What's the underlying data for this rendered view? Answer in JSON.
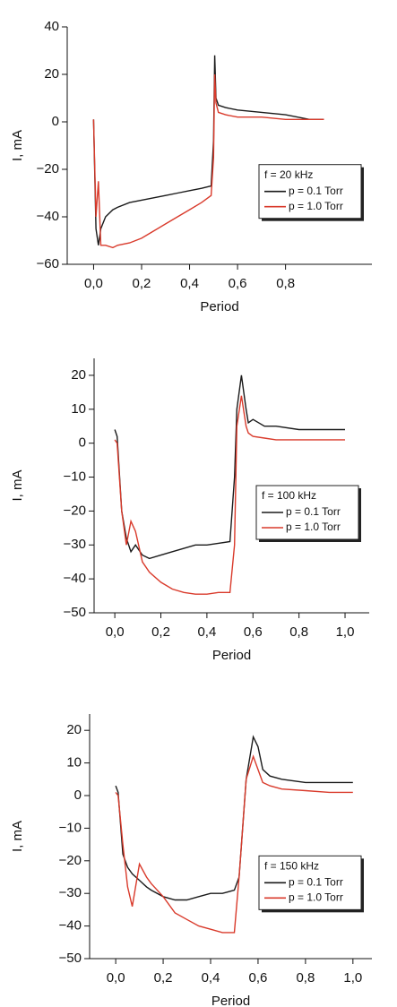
{
  "chart_data": [
    {
      "type": "line",
      "xlabel": "Period",
      "ylabel": "I, mA",
      "legend_title": "f = 20 kHz",
      "legend": "lower right",
      "x": [
        0,
        0.01,
        0.02,
        0.03,
        0.05,
        0.08,
        0.1,
        0.15,
        0.2,
        0.25,
        0.3,
        0.35,
        0.4,
        0.45,
        0.49,
        0.5,
        0.505,
        0.51,
        0.52,
        0.55,
        0.6,
        0.7,
        0.8,
        0.9,
        0.96
      ],
      "series": [
        {
          "name": "p = 0.1 Torr",
          "color": "#1a1a1a",
          "values": [
            1,
            -45,
            -52,
            -45,
            -40,
            -37,
            -36,
            -34,
            -33,
            -32,
            -31,
            -30,
            -29,
            -28,
            -27,
            -8,
            28,
            10,
            7,
            6,
            5,
            4,
            3,
            1,
            1
          ]
        },
        {
          "name": "p = 1.0 Torr",
          "color": "#d93a2b",
          "values": [
            1,
            -40,
            -25,
            -52,
            -52,
            -53,
            -52,
            -51,
            -49,
            -46,
            -43,
            -40,
            -37,
            -34,
            -31,
            -15,
            20,
            8,
            4,
            3,
            2,
            2,
            1,
            1,
            1
          ]
        }
      ],
      "xlim": [
        -0.11,
        1.16
      ],
      "ylim": [
        -60,
        40
      ],
      "xticks": [
        {
          "value": 0,
          "label": "0,0"
        },
        {
          "value": 0.2,
          "label": "0,2"
        },
        {
          "value": 0.4,
          "label": "0,4"
        },
        {
          "value": 0.6,
          "label": "0,6"
        },
        {
          "value": 0.8,
          "label": "0,8"
        }
      ],
      "yticks": [
        40,
        20,
        0,
        {
          "value": -20,
          "label": "−20"
        },
        {
          "value": -40,
          "label": "−40"
        },
        {
          "value": -60,
          "label": "−60"
        }
      ]
    },
    {
      "type": "line",
      "xlabel": "Period",
      "ylabel": "I, mA",
      "legend_title": "f = 100 kHz",
      "legend": "right",
      "x": [
        0,
        0.01,
        0.03,
        0.05,
        0.07,
        0.09,
        0.12,
        0.15,
        0.2,
        0.25,
        0.3,
        0.35,
        0.4,
        0.45,
        0.5,
        0.52,
        0.53,
        0.55,
        0.57,
        0.58,
        0.6,
        0.65,
        0.7,
        0.8,
        0.9,
        1.0
      ],
      "series": [
        {
          "name": "p = 0.1 Torr",
          "color": "#1a1a1a",
          "values": [
            4,
            2,
            -20,
            -28,
            -32,
            -30,
            -33,
            -34,
            -33,
            -32,
            -31,
            -30,
            -30,
            -29.5,
            -29,
            -10,
            10,
            20,
            10,
            6,
            7,
            5,
            5,
            4,
            4,
            4
          ]
        },
        {
          "name": "p = 1.0 Torr",
          "color": "#d93a2b",
          "values": [
            1,
            0,
            -20,
            -30,
            -23,
            -26,
            -35,
            -38,
            -41,
            -43,
            -44,
            -44.5,
            -44.5,
            -44,
            -44,
            -30,
            5,
            14,
            5,
            3,
            2,
            1.5,
            1,
            1,
            1,
            1
          ]
        }
      ],
      "xlim": [
        -0.09,
        1.105
      ],
      "ylim": [
        -50,
        25
      ],
      "xticks": [
        {
          "value": 0,
          "label": "0,0"
        },
        {
          "value": 0.2,
          "label": "0,2"
        },
        {
          "value": 0.4,
          "label": "0,4"
        },
        {
          "value": 0.6,
          "label": "0,6"
        },
        {
          "value": 0.8,
          "label": "0,8"
        },
        {
          "value": 1,
          "label": "1,0"
        }
      ],
      "yticks": [
        20,
        10,
        0,
        {
          "value": -10,
          "label": "−10"
        },
        {
          "value": -20,
          "label": "−20"
        },
        {
          "value": -30,
          "label": "−30"
        },
        {
          "value": -40,
          "label": "−40"
        },
        {
          "value": -50,
          "label": "−50"
        }
      ]
    },
    {
      "type": "line",
      "xlabel": "Period",
      "ylabel": "I, mA",
      "legend_title": "f = 150 kHz",
      "legend": "lower right",
      "x": [
        0,
        0.01,
        0.03,
        0.05,
        0.07,
        0.1,
        0.13,
        0.15,
        0.2,
        0.25,
        0.3,
        0.35,
        0.4,
        0.45,
        0.5,
        0.52,
        0.55,
        0.58,
        0.6,
        0.62,
        0.65,
        0.7,
        0.8,
        0.9,
        1.0
      ],
      "series": [
        {
          "name": "p = 0.1 Torr",
          "color": "#1a1a1a",
          "values": [
            3,
            1,
            -18,
            -22,
            -24,
            -26,
            -28,
            -29,
            -31,
            -32,
            -32,
            -31,
            -30,
            -30,
            -29,
            -25,
            5,
            18,
            15,
            8,
            6,
            5,
            4,
            4,
            4
          ]
        },
        {
          "name": "p = 1.0 Torr",
          "color": "#d93a2b",
          "values": [
            1,
            0,
            -15,
            -28,
            -34,
            -21,
            -25,
            -27,
            -31,
            -36,
            -38,
            -40,
            -41,
            -42,
            -42,
            -25,
            5,
            12,
            8,
            4,
            3,
            2,
            1.5,
            1,
            1
          ]
        }
      ],
      "xlim": [
        -0.11,
        1.08
      ],
      "ylim": [
        -50,
        25
      ],
      "xticks": [
        {
          "value": 0,
          "label": "0,0"
        },
        {
          "value": 0.2,
          "label": "0,2"
        },
        {
          "value": 0.4,
          "label": "0,4"
        },
        {
          "value": 0.6,
          "label": "0,6"
        },
        {
          "value": 0.8,
          "label": "0,8"
        },
        {
          "value": 1,
          "label": "1,0"
        }
      ],
      "yticks": [
        20,
        10,
        0,
        {
          "value": -10,
          "label": "−10"
        },
        {
          "value": -20,
          "label": "−20"
        },
        {
          "value": -30,
          "label": "−30"
        },
        {
          "value": -40,
          "label": "−40"
        },
        {
          "value": -50,
          "label": "−50"
        }
      ]
    }
  ]
}
